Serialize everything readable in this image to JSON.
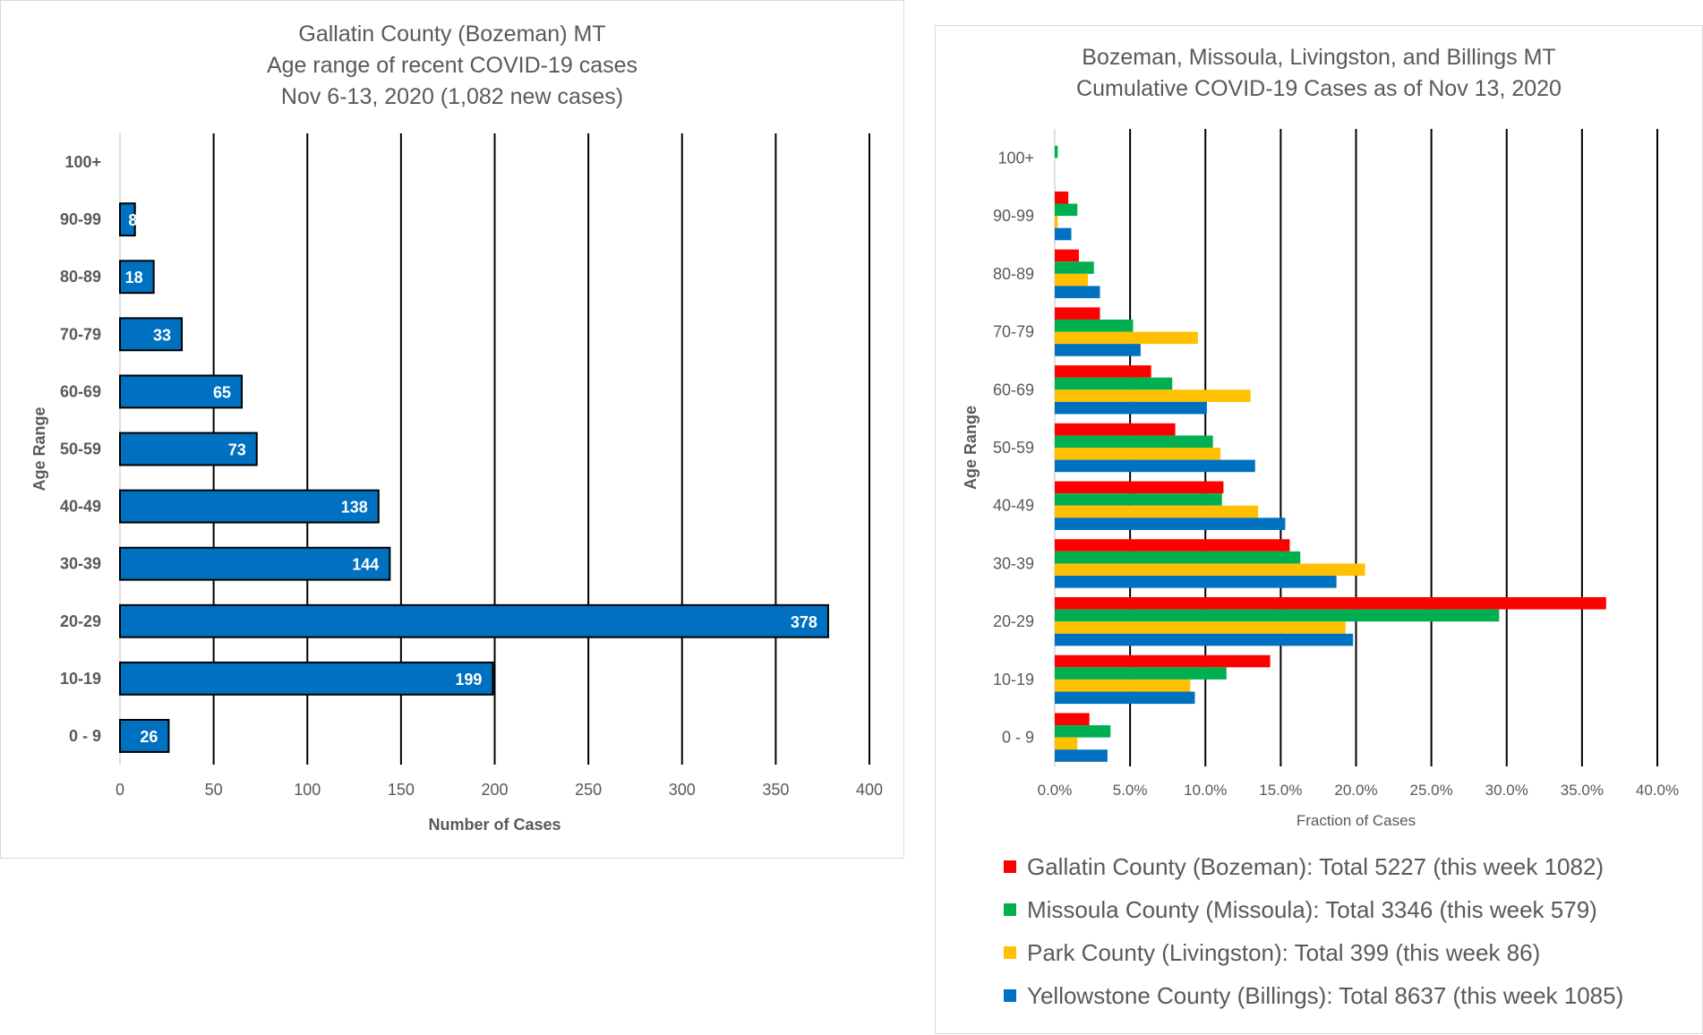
{
  "chart_data": [
    {
      "type": "bar",
      "orientation": "horizontal",
      "title": [
        "Gallatin County (Bozeman) MT",
        "Age range of recent COVID-19 cases",
        "Nov 6-13, 2020 (1,082 new cases)"
      ],
      "xlabel": "Number of Cases",
      "ylabel": "Age Range",
      "categories": [
        "0 - 9",
        "10-19",
        "20-29",
        "30-39",
        "40-49",
        "50-59",
        "60-69",
        "70-79",
        "80-89",
        "90-99",
        "100+"
      ],
      "values": [
        26,
        199,
        378,
        144,
        138,
        73,
        65,
        33,
        18,
        8,
        0
      ],
      "data_labels": [
        "26",
        "199",
        "378",
        "144",
        "138",
        "73",
        "65",
        "33",
        "18",
        "8",
        ""
      ],
      "xticks": [
        "0",
        "50",
        "100",
        "150",
        "200",
        "250",
        "300",
        "350",
        "400"
      ],
      "xlim": [
        0,
        400
      ],
      "grid": true,
      "color": "#0070c0"
    },
    {
      "type": "bar",
      "orientation": "horizontal",
      "title": [
        "Bozeman, Missoula, Livingston, and Billings MT",
        "Cumulative COVID-19 Cases as of Nov 13, 2020"
      ],
      "xlabel": "Fraction of Cases",
      "ylabel": "Age Range",
      "categories": [
        "0 - 9",
        "10-19",
        "20-29",
        "30-39",
        "40-49",
        "50-59",
        "60-69",
        "70-79",
        "80-89",
        "90-99",
        "100+"
      ],
      "xticks": [
        "0.0%",
        "5.0%",
        "10.0%",
        "15.0%",
        "20.0%",
        "25.0%",
        "30.0%",
        "35.0%",
        "40.0%"
      ],
      "xlim": [
        0,
        0.4
      ],
      "grid": true,
      "legend_position": "bottom",
      "series": [
        {
          "name": "Gallatin County (Bozeman): Total 5227 (this week 1082)",
          "color": "#ff0000",
          "values": [
            0.023,
            0.143,
            0.366,
            0.156,
            0.112,
            0.08,
            0.064,
            0.03,
            0.016,
            0.009,
            0.0
          ]
        },
        {
          "name": "Missoula County (Missoula): Total 3346 (this week 579)",
          "color": "#00b050",
          "values": [
            0.037,
            0.114,
            0.295,
            0.163,
            0.111,
            0.105,
            0.078,
            0.052,
            0.026,
            0.015,
            0.002
          ]
        },
        {
          "name": "Park County (Livingston): Total 399 (this week 86)",
          "color": "#ffc000",
          "values": [
            0.015,
            0.09,
            0.193,
            0.206,
            0.135,
            0.11,
            0.13,
            0.095,
            0.022,
            0.002,
            0.0
          ]
        },
        {
          "name": "Yellowstone County (Billings): Total 8637 (this week 1085)",
          "color": "#0070c0",
          "values": [
            0.035,
            0.093,
            0.198,
            0.187,
            0.153,
            0.133,
            0.101,
            0.057,
            0.03,
            0.011,
            0.0
          ]
        }
      ]
    }
  ]
}
